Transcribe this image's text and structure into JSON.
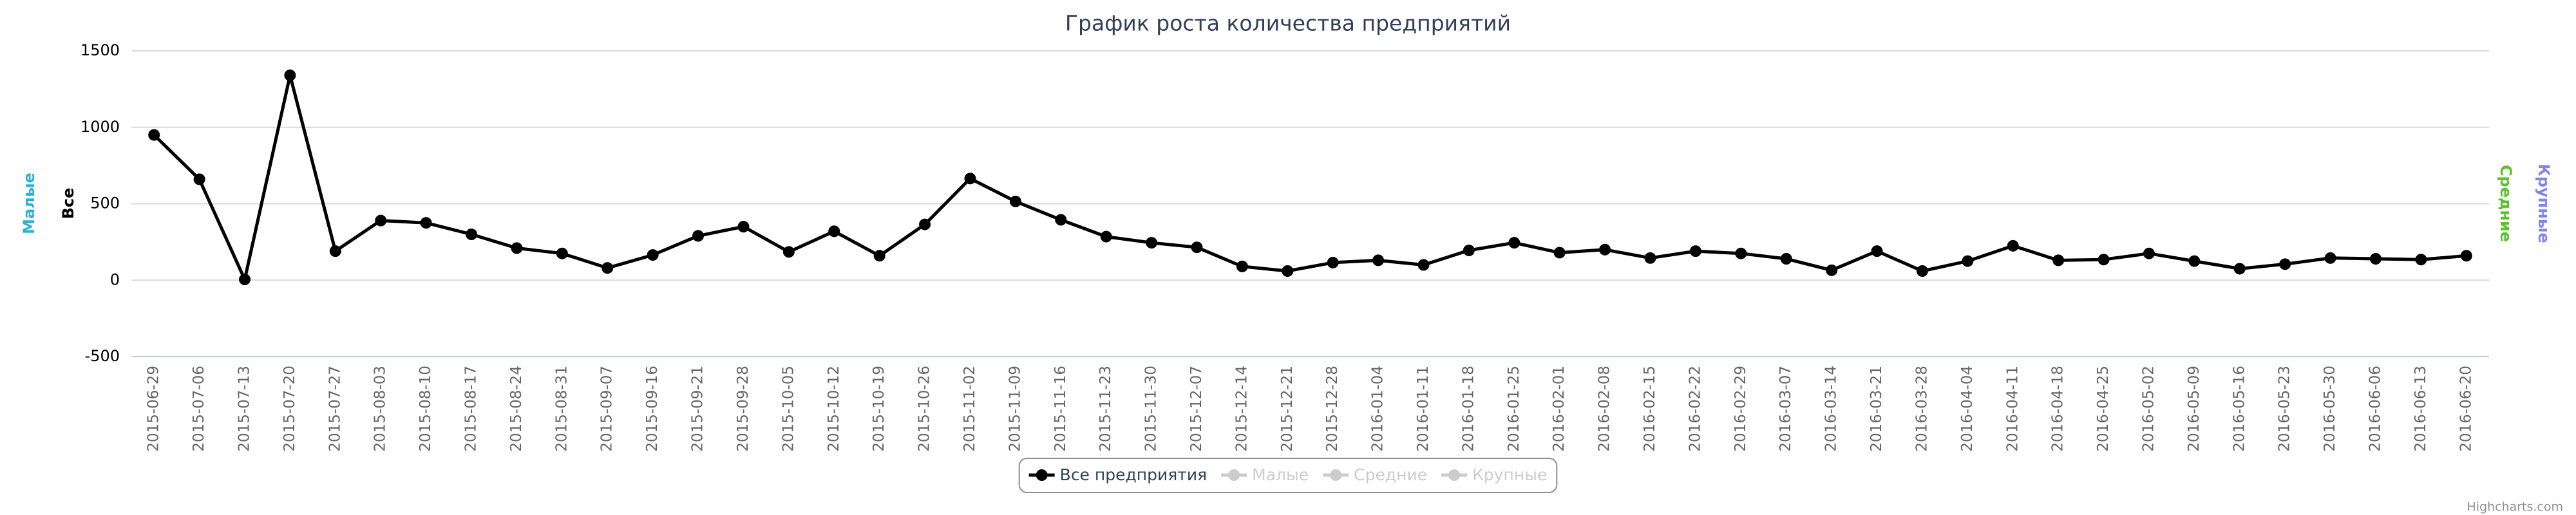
{
  "chart_data": {
    "type": "line",
    "title": "График роста количества предприятий",
    "categories": [
      "2015-06-29",
      "2015-07-06",
      "2015-07-13",
      "2015-07-20",
      "2015-07-27",
      "2015-08-03",
      "2015-08-10",
      "2015-08-17",
      "2015-08-24",
      "2015-08-31",
      "2015-09-07",
      "2015-09-16",
      "2015-09-21",
      "2015-09-28",
      "2015-10-05",
      "2015-10-12",
      "2015-10-19",
      "2015-10-26",
      "2015-11-02",
      "2015-11-09",
      "2015-11-16",
      "2015-11-23",
      "2015-11-30",
      "2015-12-07",
      "2015-12-14",
      "2015-12-21",
      "2015-12-28",
      "2016-01-04",
      "2016-01-11",
      "2016-01-18",
      "2016-01-25",
      "2016-02-01",
      "2016-02-08",
      "2016-02-15",
      "2016-02-22",
      "2016-02-29",
      "2016-03-07",
      "2016-03-14",
      "2016-03-21",
      "2016-03-28",
      "2016-04-04",
      "2016-04-11",
      "2016-04-18",
      "2016-04-25",
      "2016-05-02",
      "2016-05-09",
      "2016-05-16",
      "2016-05-23",
      "2016-05-30",
      "2016-06-06",
      "2016-06-13",
      "2016-06-20"
    ],
    "series": [
      {
        "name": "Все предприятия",
        "color": "#000000",
        "visible": true,
        "values": [
          950,
          660,
          5,
          1340,
          190,
          390,
          375,
          300,
          210,
          175,
          80,
          165,
          290,
          350,
          185,
          320,
          160,
          365,
          665,
          515,
          395,
          285,
          245,
          215,
          90,
          60,
          115,
          130,
          100,
          195,
          245,
          180,
          200,
          145,
          190,
          175,
          140,
          65,
          190,
          60,
          125,
          225,
          130,
          135,
          175,
          125,
          75,
          105,
          145,
          140,
          135,
          160
        ]
      },
      {
        "name": "Малые",
        "color": "#2bb3d3",
        "visible": false
      },
      {
        "name": "Средние",
        "color": "#5cc22b",
        "visible": false
      },
      {
        "name": "Крупные",
        "color": "#8085e9",
        "visible": false
      }
    ],
    "axis_titles": [
      {
        "text": "Малые",
        "color": "#2bb3d3",
        "side": "left"
      },
      {
        "text": "Все",
        "color": "#000000",
        "side": "left"
      },
      {
        "text": "Средние",
        "color": "#5cc22b",
        "side": "right"
      },
      {
        "text": "Крупные",
        "color": "#8085e9",
        "side": "right"
      }
    ],
    "ylim": [
      -500,
      1500
    ],
    "yticks": [
      -500,
      0,
      500,
      1000,
      1500
    ],
    "grid": true,
    "legend": "bottom",
    "credits": "Highcharts.com"
  }
}
